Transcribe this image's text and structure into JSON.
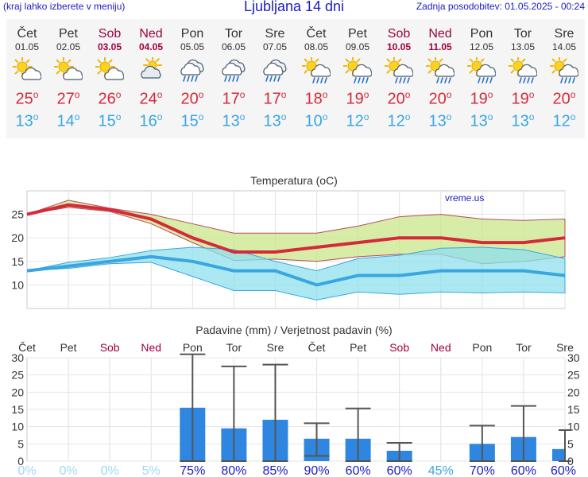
{
  "header": {
    "hint": "(kraj lahko izberete v meniju)",
    "title": "Ljubljana 14 dni",
    "updated": "Zadnja posodobitev: 01.05.2025 - 00:24"
  },
  "days": [
    {
      "name": "Čet",
      "date": "01.05",
      "icon": "sun-cloud",
      "tmax": "25",
      "tmin": "13",
      "weekend": false
    },
    {
      "name": "Pet",
      "date": "02.05",
      "icon": "sun-cloud",
      "tmax": "27",
      "tmin": "14",
      "weekend": false
    },
    {
      "name": "Sob",
      "date": "03.05",
      "icon": "sun-cloud",
      "tmax": "26",
      "tmin": "15",
      "weekend": true
    },
    {
      "name": "Ned",
      "date": "04.05",
      "icon": "cloud-sun",
      "tmax": "24",
      "tmin": "16",
      "weekend": true
    },
    {
      "name": "Pon",
      "date": "05.05",
      "icon": "cloud-rain",
      "tmax": "20",
      "tmin": "15",
      "weekend": false
    },
    {
      "name": "Tor",
      "date": "06.05",
      "icon": "cloud-rain",
      "tmax": "17",
      "tmin": "13",
      "weekend": false
    },
    {
      "name": "Sre",
      "date": "07.05",
      "icon": "cloud-rain",
      "tmax": "17",
      "tmin": "13",
      "weekend": false
    },
    {
      "name": "Čet",
      "date": "08.05",
      "icon": "sun-rain",
      "tmax": "18",
      "tmin": "10",
      "weekend": false
    },
    {
      "name": "Pet",
      "date": "09.05",
      "icon": "sun-rain",
      "tmax": "19",
      "tmin": "12",
      "weekend": false
    },
    {
      "name": "Sob",
      "date": "10.05",
      "icon": "sun-rain",
      "tmax": "20",
      "tmin": "12",
      "weekend": true
    },
    {
      "name": "Ned",
      "date": "11.05",
      "icon": "sun-rain",
      "tmax": "20",
      "tmin": "13",
      "weekend": true
    },
    {
      "name": "Pon",
      "date": "12.05",
      "icon": "sun-rain",
      "tmax": "19",
      "tmin": "13",
      "weekend": false
    },
    {
      "name": "Tor",
      "date": "13.05",
      "icon": "sun-rain",
      "tmax": "19",
      "tmin": "13",
      "weekend": false
    },
    {
      "name": "Sre",
      "date": "14.05",
      "icon": "sun-rain",
      "tmax": "20",
      "tmin": "12",
      "weekend": false
    }
  ],
  "degree_symbol": "o",
  "chart_data": [
    {
      "type": "line",
      "title": "Temperatura (oC)",
      "watermark": "vreme.us",
      "ylim": [
        5,
        30
      ],
      "yticks": [
        10,
        15,
        20,
        25
      ],
      "grid": true,
      "x": [
        "01.05",
        "02.05",
        "03.05",
        "04.05",
        "05.05",
        "06.05",
        "07.05",
        "08.05",
        "09.05",
        "10.05",
        "11.05",
        "12.05",
        "13.05",
        "14.05"
      ],
      "series": [
        {
          "role": "max",
          "color": "#d42a3a",
          "values": [
            25,
            27,
            26,
            24,
            20,
            17,
            17,
            18,
            19,
            20,
            20,
            19,
            19,
            20
          ]
        },
        {
          "role": "min",
          "color": "#3aa6e0",
          "values": [
            13,
            14,
            15,
            16,
            15,
            13,
            13,
            10,
            12,
            12,
            13,
            13,
            13,
            12
          ]
        }
      ],
      "max_band": {
        "color": "#c9e68a",
        "upper": [
          25,
          28,
          26.3,
          25,
          23,
          21,
          21,
          21,
          22.5,
          24.5,
          25,
          24,
          23.7,
          24
        ],
        "lower": [
          25,
          26.5,
          25.6,
          23,
          19,
          15.2,
          15.5,
          15,
          16,
          16.5,
          16.5,
          14.5,
          15,
          16
        ]
      },
      "min_band": {
        "color": "#8fe0ee",
        "upper": [
          13,
          14.8,
          15.8,
          17.3,
          18,
          17.5,
          15,
          13,
          15.6,
          16.3,
          17.8,
          18,
          17.5,
          15.6
        ],
        "lower": [
          13,
          13.5,
          14.5,
          14.8,
          11.8,
          8.8,
          8.8,
          6.8,
          8.5,
          8,
          8.5,
          8.3,
          8.5,
          8.3
        ]
      }
    },
    {
      "type": "bar",
      "title": "Padavine (mm) / Verjetnost padavin (%)",
      "day_labels": [
        "Čet",
        "Pet",
        "Sob",
        "Ned",
        "Pon",
        "Tor",
        "Sre",
        "Čet",
        "Pet",
        "Sob",
        "Ned",
        "Pon",
        "Tor",
        "Sre"
      ],
      "weekend": [
        false,
        false,
        true,
        true,
        false,
        false,
        false,
        false,
        false,
        true,
        true,
        false,
        false,
        false
      ],
      "ylim": [
        0,
        30
      ],
      "yticks": [
        0,
        5,
        10,
        15,
        20,
        25,
        30
      ],
      "bar_color": "#2f86e0",
      "values": [
        0,
        0,
        0,
        0,
        15.5,
        9.5,
        12,
        6.5,
        6.5,
        3,
        0,
        5,
        7,
        3.5
      ],
      "range_low": [
        null,
        null,
        null,
        null,
        0,
        0,
        0,
        1.5,
        0,
        0,
        null,
        0,
        0,
        0
      ],
      "range_high": [
        null,
        null,
        null,
        null,
        31,
        27.5,
        28,
        11,
        15.3,
        5.3,
        null,
        10.3,
        16,
        9
      ],
      "probability": [
        "0%",
        "0%",
        "0%",
        "5%",
        "75%",
        "80%",
        "85%",
        "90%",
        "60%",
        "60%",
        "45%",
        "70%",
        "60%",
        "60%"
      ]
    }
  ]
}
